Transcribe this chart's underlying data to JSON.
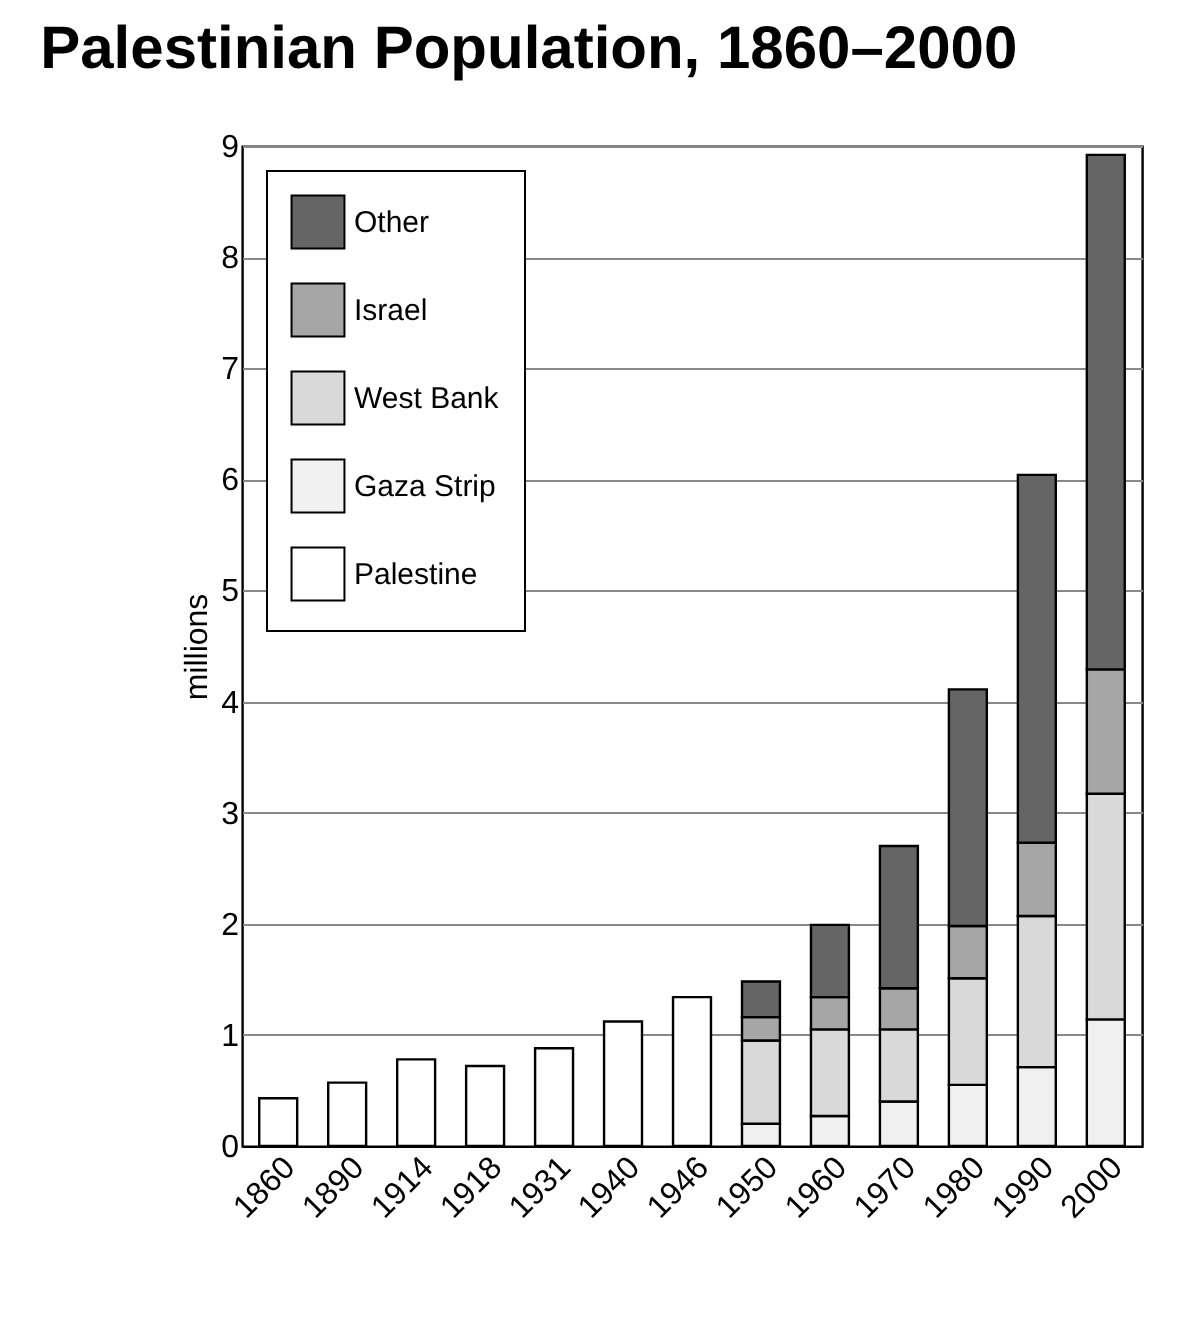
{
  "chart_data": {
    "type": "bar",
    "title": "Palestinian Population, 1860–2000",
    "ylabel": "millions",
    "categories": [
      "1860",
      "1890",
      "1914",
      "1918",
      "1931",
      "1940",
      "1946",
      "1950",
      "1960",
      "1970",
      "1980",
      "1990",
      "2000"
    ],
    "stacked": true,
    "series": [
      {
        "name": "Palestine",
        "color": "#ffffff",
        "values": [
          0.43,
          0.57,
          0.78,
          0.72,
          0.88,
          1.12,
          1.34,
          null,
          null,
          null,
          null,
          null,
          null
        ]
      },
      {
        "name": "Gaza Strip",
        "color": "#f0f0f0",
        "values": [
          null,
          null,
          null,
          null,
          null,
          null,
          null,
          0.2,
          0.27,
          0.4,
          0.55,
          0.71,
          1.14
        ]
      },
      {
        "name": "West Bank",
        "color": "#d9d9d9",
        "values": [
          null,
          null,
          null,
          null,
          null,
          null,
          null,
          0.75,
          0.78,
          0.65,
          0.96,
          1.36,
          2.03
        ]
      },
      {
        "name": "Israel",
        "color": "#a6a6a6",
        "values": [
          null,
          null,
          null,
          null,
          null,
          null,
          null,
          0.21,
          0.29,
          0.37,
          0.47,
          0.66,
          1.12
        ]
      },
      {
        "name": "Other",
        "color": "#656565",
        "values": [
          null,
          null,
          null,
          null,
          null,
          null,
          null,
          0.32,
          0.65,
          1.28,
          2.13,
          3.31,
          4.63
        ]
      }
    ],
    "ylim": [
      0,
      9
    ],
    "yticks": [
      0,
      1,
      2,
      3,
      4,
      5,
      6,
      7,
      8,
      9
    ],
    "grid": "y",
    "legend": "top left"
  }
}
